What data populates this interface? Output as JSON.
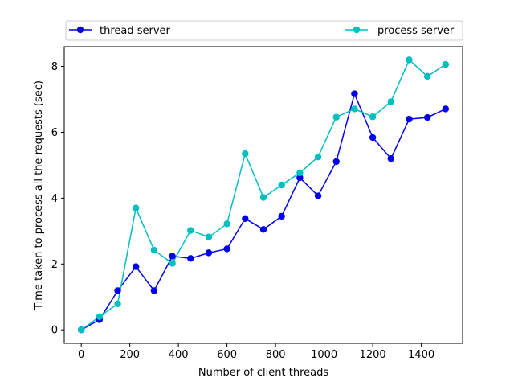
{
  "chart_data": {
    "type": "line",
    "xlabel": "Number of client threads",
    "ylabel": "Time taken to process all the requests (sec)",
    "xlim": [
      -70,
      1570
    ],
    "ylim": [
      -0.41,
      8.6
    ],
    "xticks": [
      0,
      200,
      400,
      600,
      800,
      1000,
      1200,
      1400
    ],
    "yticks": [
      0,
      2,
      4,
      6,
      8
    ],
    "grid": false,
    "legend_placement": "top, above plot, spanning width",
    "series": [
      {
        "name": "thread server",
        "color": "#0000ee",
        "marker": "circle",
        "x": [
          0,
          75,
          150,
          225,
          300,
          375,
          450,
          525,
          600,
          675,
          750,
          825,
          900,
          975,
          1050,
          1125,
          1200,
          1275,
          1350,
          1425,
          1500
        ],
        "y": [
          0.0,
          0.31,
          1.19,
          1.92,
          1.19,
          2.24,
          2.17,
          2.34,
          2.46,
          3.38,
          3.05,
          3.45,
          4.62,
          4.07,
          5.11,
          7.17,
          5.84,
          5.2,
          6.4,
          6.45,
          6.71
        ]
      },
      {
        "name": "process server",
        "color": "#00bfbf",
        "marker": "circle",
        "x": [
          0,
          75,
          150,
          225,
          300,
          375,
          450,
          525,
          600,
          675,
          750,
          825,
          900,
          975,
          1050,
          1125,
          1200,
          1275,
          1350,
          1425,
          1500
        ],
        "y": [
          0.0,
          0.4,
          0.79,
          3.7,
          2.42,
          2.02,
          3.02,
          2.82,
          3.22,
          5.35,
          4.02,
          4.4,
          4.77,
          5.25,
          6.46,
          6.71,
          6.47,
          6.93,
          8.2,
          7.7,
          8.06
        ]
      }
    ]
  }
}
